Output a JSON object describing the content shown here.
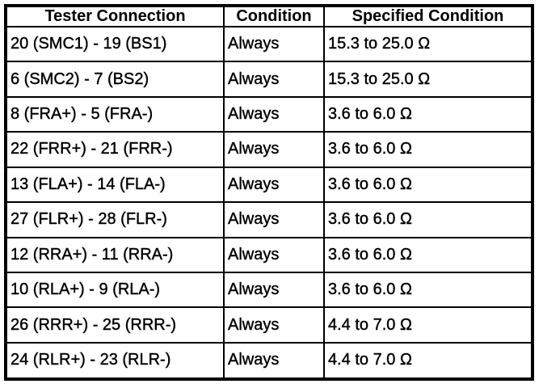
{
  "table": {
    "header": [
      "Tester Connection",
      "Condition",
      "Specified Condition"
    ],
    "rows": [
      [
        "20 (SMC1) - 19 (BS1)",
        "Always",
        "15.3 to 25.0 Ω"
      ],
      [
        "6 (SMC2) - 7 (BS2)",
        "Always",
        "15.3 to 25.0 Ω"
      ],
      [
        "8 (FRA+) - 5 (FRA-)",
        "Always",
        "3.6 to 6.0 Ω"
      ],
      [
        "22 (FRR+) - 21 (FRR-)",
        "Always",
        "3.6 to 6.0 Ω"
      ],
      [
        "13 (FLA+) - 14 (FLA-)",
        "Always",
        "3.6 to 6.0 Ω"
      ],
      [
        "27 (FLR+) - 28 (FLR-)",
        "Always",
        "3.6 to 6.0 Ω"
      ],
      [
        "12 (RRA+) - 11 (RRA-)",
        "Always",
        "3.6 to 6.0 Ω"
      ],
      [
        "10 (RLA+) - 9 (RLA-)",
        "Always",
        "3.6 to 6.0 Ω"
      ],
      [
        "26 (RRR+) - 25 (RRR-)",
        "Always",
        "4.4 to 7.0 Ω"
      ],
      [
        "24 (RLR+) - 23 (RLR-)",
        "Always",
        "4.4 to 7.0 Ω"
      ]
    ]
  }
}
